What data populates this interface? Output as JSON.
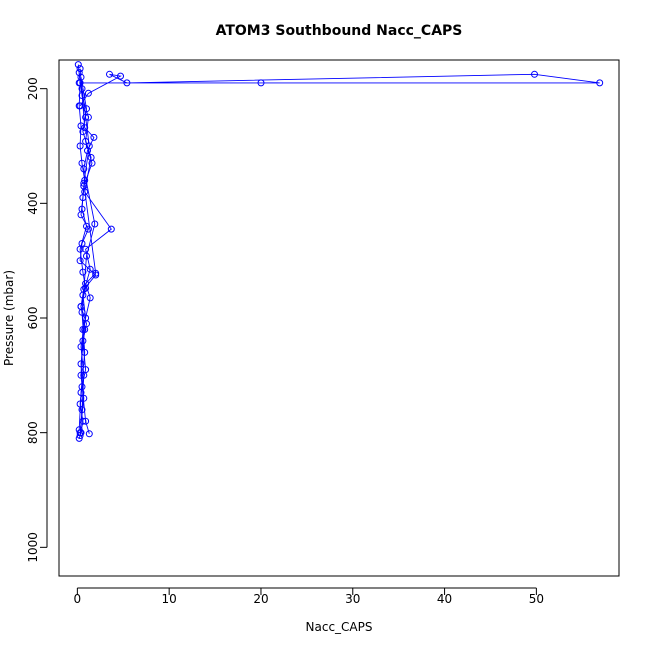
{
  "chart_data": {
    "type": "line",
    "title": "ATOM3 Southbound Nacc_CAPS",
    "xlabel": "Nacc_CAPS",
    "ylabel": "Pressure (mbar)",
    "xlim": [
      -2,
      59
    ],
    "ylim": [
      1050,
      150
    ],
    "y_reversed": true,
    "grid": false,
    "legend": "none",
    "series_color": "#0000ff",
    "marker": "open-circle",
    "x_ticks": [
      "0",
      "10",
      "20",
      "30",
      "40",
      "50"
    ],
    "y_ticks": [
      "200",
      "400",
      "600",
      "800",
      "1000"
    ],
    "series": [
      {
        "x": [
          0.1,
          0.3,
          0.2,
          0.4,
          0.3,
          0.5,
          0.8,
          0.6,
          0.4,
          1.2,
          0.5,
          0.3,
          2.0,
          0.7,
          0.4,
          1.0,
          0.6,
          0.9,
          0.5,
          0.3,
          0.6,
          0.4,
          0.2
        ],
        "y": [
          158,
          190,
          230,
          265,
          300,
          330,
          360,
          390,
          420,
          445,
          470,
          500,
          525,
          550,
          580,
          610,
          640,
          690,
          720,
          750,
          780,
          800,
          810
        ]
      },
      {
        "x": [
          0.2,
          0.5,
          1.2,
          0.9,
          1.6,
          0.7,
          0.5,
          1.0,
          0.3,
          0.6,
          0.9,
          0.4,
          0.8,
          0.4,
          0.7,
          0.3
        ],
        "y": [
          172,
          212,
          250,
          292,
          330,
          370,
          410,
          440,
          480,
          520,
          548,
          580,
          620,
          680,
          740,
          800
        ]
      },
      {
        "x": [
          0.4,
          1.0,
          0.6,
          1.5,
          0.8,
          3.7,
          0.9,
          1.4,
          0.6,
          0.9,
          0.4,
          0.7,
          0.5,
          0.3
        ],
        "y": [
          180,
          235,
          275,
          320,
          380,
          445,
          480,
          515,
          560,
          600,
          650,
          700,
          760,
          805
        ]
      },
      {
        "x": [
          0.3,
          0.8,
          1.8,
          1.1,
          0.7,
          1.9,
          1.0,
          0.5,
          0.8,
          0.4,
          0.2
        ],
        "y": [
          165,
          268,
          285,
          308,
          340,
          436,
          492,
          590,
          660,
          730,
          795
        ]
      },
      {
        "x": [
          0.5,
          0.9,
          1.3,
          0.7,
          2.0,
          0.9,
          1.4,
          0.6,
          0.4,
          0.9,
          1.3
        ],
        "y": [
          200,
          250,
          300,
          365,
          522,
          540,
          565,
          620,
          700,
          780,
          802
        ]
      },
      {
        "x": [
          0.2,
          20.0,
          56.9,
          49.8,
          5.4,
          3.5,
          4.7,
          1.2,
          0.3
        ],
        "y": [
          190,
          190,
          190,
          175,
          190,
          175,
          178,
          208,
          230
        ]
      }
    ]
  }
}
